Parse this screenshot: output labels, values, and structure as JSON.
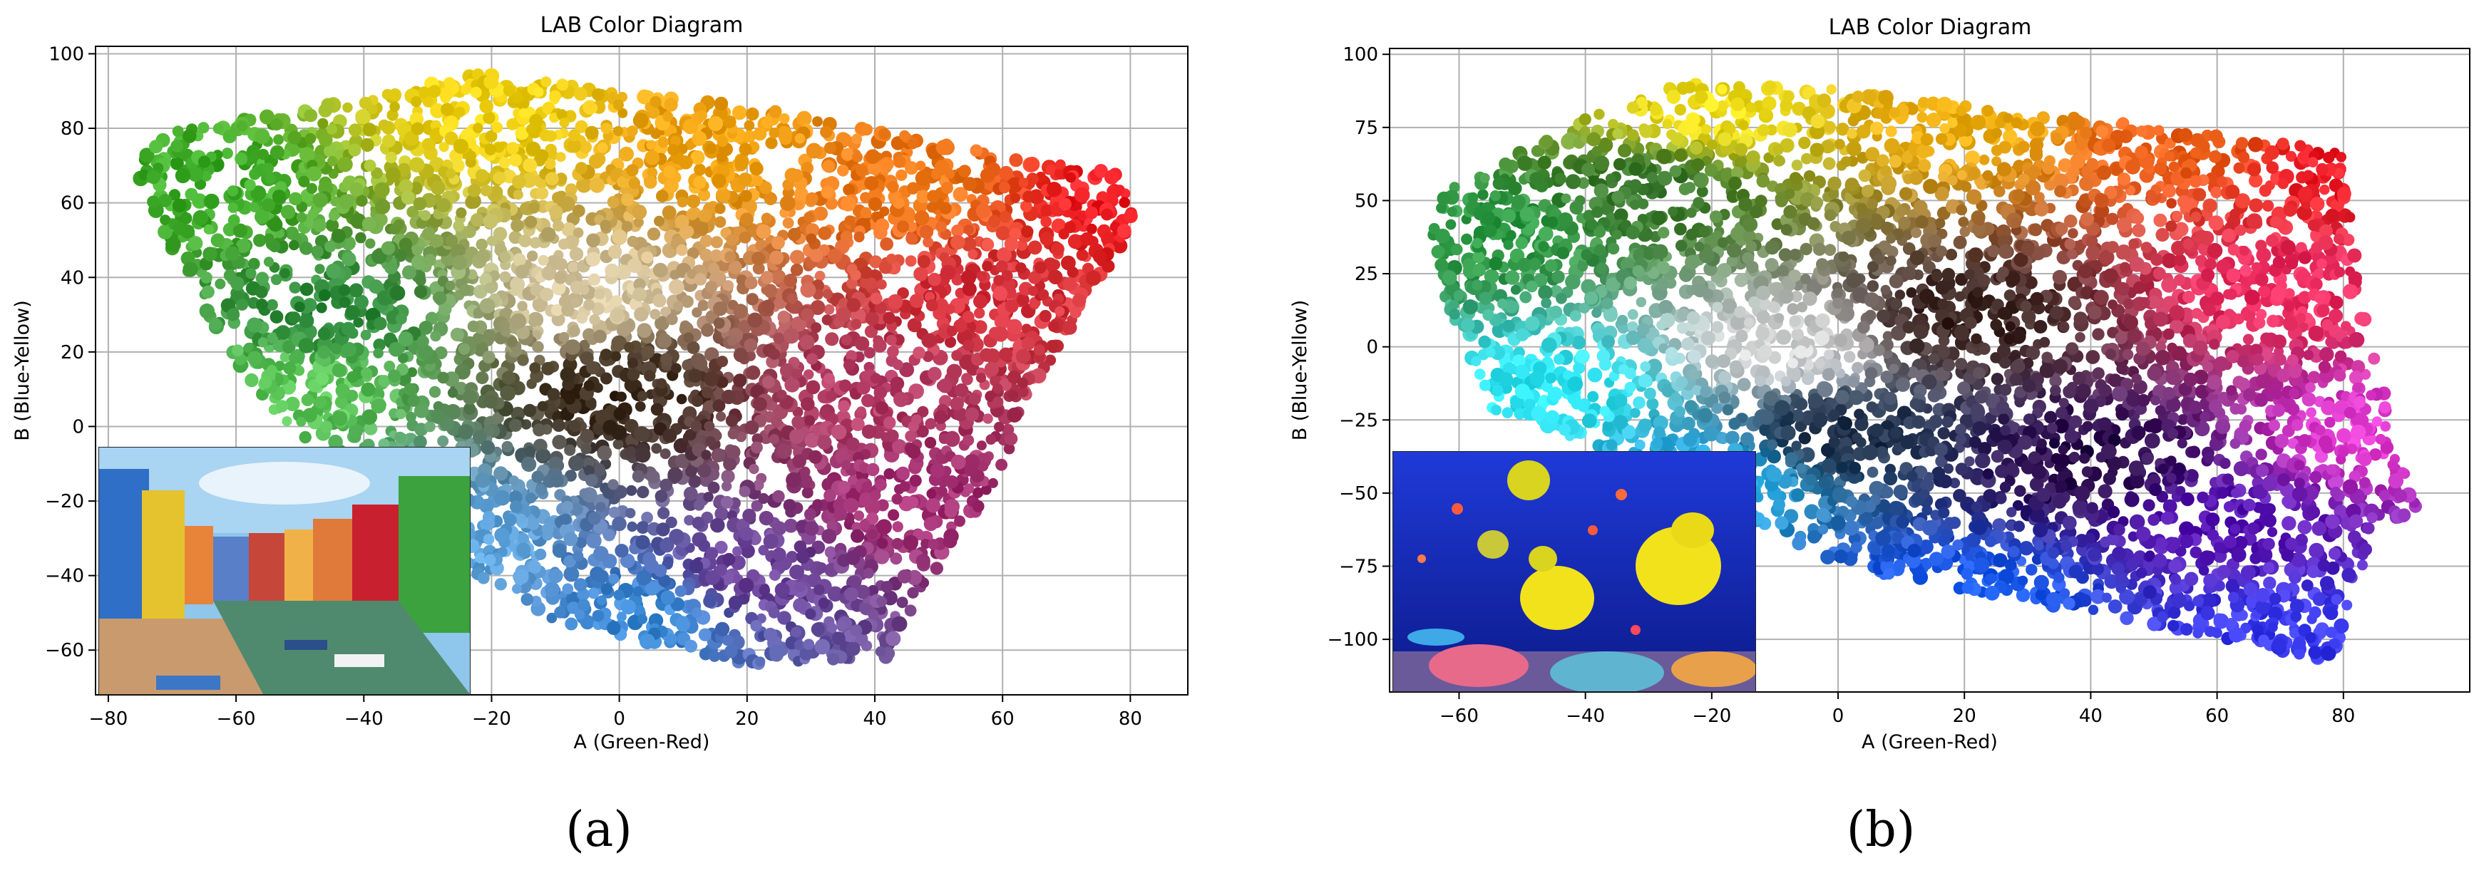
{
  "panels": [
    {
      "caption": "(a)",
      "inset_image": "canal-houses-photo",
      "chart_data": {
        "type": "scatter",
        "title": "LAB Color Diagram",
        "xlabel": "A (Green-Red)",
        "ylabel": "B (Blue-Yellow)",
        "xlim": [
          -82,
          89
        ],
        "ylim": [
          -72,
          102
        ],
        "xticks": [
          -80,
          -60,
          -40,
          -20,
          0,
          20,
          40,
          60,
          80
        ],
        "yticks": [
          -60,
          -40,
          -20,
          0,
          20,
          40,
          60,
          80,
          100
        ],
        "grid": true,
        "hull": [
          [
            -76,
            70
          ],
          [
            -70,
            79
          ],
          [
            -40,
            88
          ],
          [
            -22,
            95
          ],
          [
            20,
            86
          ],
          [
            45,
            78
          ],
          [
            62,
            72
          ],
          [
            80,
            68
          ],
          [
            81,
            55
          ],
          [
            72,
            30
          ],
          [
            63,
            5
          ],
          [
            60,
            -13
          ],
          [
            52,
            -32
          ],
          [
            43,
            -62
          ],
          [
            30,
            -63
          ],
          [
            18,
            -64
          ],
          [
            5,
            -58
          ],
          [
            -10,
            -52
          ],
          [
            -22,
            -40
          ],
          [
            -37,
            -25
          ],
          [
            -48,
            -5
          ],
          [
            -58,
            10
          ],
          [
            -68,
            40
          ]
        ],
        "color_regions": [
          {
            "a": -65,
            "b": 65,
            "color": "#3fae2b"
          },
          {
            "a": -45,
            "b": 30,
            "color": "#2e8b3c"
          },
          {
            "a": -20,
            "b": 85,
            "color": "#f2d312"
          },
          {
            "a": 15,
            "b": 75,
            "color": "#f0a20f"
          },
          {
            "a": 45,
            "b": 65,
            "color": "#f07a18"
          },
          {
            "a": 78,
            "b": 62,
            "color": "#ef1d24"
          },
          {
            "a": 55,
            "b": 35,
            "color": "#d8333f"
          },
          {
            "a": 0,
            "b": 10,
            "color": "#3a2a1c"
          },
          {
            "a": -5,
            "b": 35,
            "color": "#d9c9a2"
          },
          {
            "a": 40,
            "b": 10,
            "color": "#b23a64"
          },
          {
            "a": 45,
            "b": -20,
            "color": "#a32e72"
          },
          {
            "a": 20,
            "b": -40,
            "color": "#6a3f95"
          },
          {
            "a": 5,
            "b": -50,
            "color": "#3a8bd6"
          },
          {
            "a": -25,
            "b": -30,
            "color": "#5fa6df"
          },
          {
            "a": -50,
            "b": 10,
            "color": "#5ec95a"
          }
        ]
      }
    },
    {
      "caption": "(b)",
      "inset_image": "tropical-fish-photo",
      "chart_data": {
        "type": "scatter",
        "title": "LAB Color Diagram",
        "xlabel": "A (Green-Red)",
        "ylabel": "B (Blue-Yellow)",
        "xlim": [
          -71,
          100
        ],
        "ylim": [
          -118,
          102
        ],
        "xticks": [
          -60,
          -40,
          -20,
          0,
          20,
          40,
          60,
          80
        ],
        "yticks": [
          -100,
          -75,
          -50,
          -25,
          0,
          25,
          50,
          75,
          100
        ],
        "grid": true,
        "hull": [
          [
            -63,
            52
          ],
          [
            -40,
            78
          ],
          [
            -25,
            90
          ],
          [
            0,
            88
          ],
          [
            40,
            78
          ],
          [
            80,
            67
          ],
          [
            82,
            30
          ],
          [
            85,
            -5
          ],
          [
            88,
            -25
          ],
          [
            92,
            -58
          ],
          [
            85,
            -60
          ],
          [
            79,
            -108
          ],
          [
            50,
            -95
          ],
          [
            0,
            -75
          ],
          [
            -30,
            -40
          ],
          [
            -55,
            -22
          ],
          [
            -65,
            30
          ]
        ],
        "color_regions": [
          {
            "a": -55,
            "b": 40,
            "color": "#2e9a45"
          },
          {
            "a": -30,
            "b": 55,
            "color": "#3a7a30"
          },
          {
            "a": -20,
            "b": 80,
            "color": "#f2df1a"
          },
          {
            "a": 20,
            "b": 78,
            "color": "#f0b112"
          },
          {
            "a": 55,
            "b": 70,
            "color": "#f0641c"
          },
          {
            "a": 78,
            "b": 62,
            "color": "#ef1e2a"
          },
          {
            "a": 70,
            "b": 20,
            "color": "#ee2e62"
          },
          {
            "a": 85,
            "b": -30,
            "color": "#e23ad0"
          },
          {
            "a": 20,
            "b": 10,
            "color": "#3a2420"
          },
          {
            "a": 40,
            "b": -40,
            "color": "#2a0a4a"
          },
          {
            "a": 60,
            "b": -60,
            "color": "#5a18b8"
          },
          {
            "a": 70,
            "b": -100,
            "color": "#3b3cf0"
          },
          {
            "a": 20,
            "b": -85,
            "color": "#1a5cf0"
          },
          {
            "a": -20,
            "b": -45,
            "color": "#28b6f2"
          },
          {
            "a": -45,
            "b": -15,
            "color": "#2ee6f4"
          },
          {
            "a": -10,
            "b": 0,
            "color": "#d8d8d8"
          },
          {
            "a": 0,
            "b": -30,
            "color": "#20304a"
          }
        ]
      }
    }
  ]
}
